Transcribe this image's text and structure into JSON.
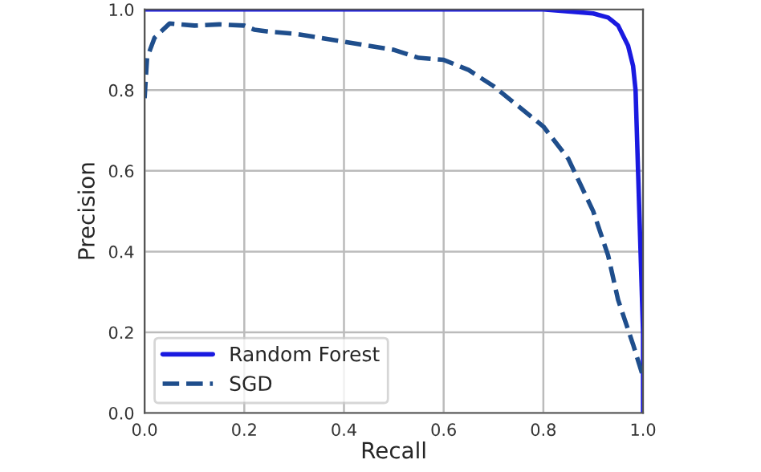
{
  "chart_data": {
    "type": "line",
    "xlabel": "Recall",
    "ylabel": "Precision",
    "xlim": [
      0,
      1
    ],
    "ylim": [
      0,
      1
    ],
    "xticks": [
      {
        "value": 0,
        "label": "0.0"
      },
      {
        "value": 0.2,
        "label": "0.2"
      },
      {
        "value": 0.4,
        "label": "0.4"
      },
      {
        "value": 0.6,
        "label": "0.6"
      },
      {
        "value": 0.8,
        "label": "0.8"
      },
      {
        "value": 1,
        "label": "1.0"
      }
    ],
    "yticks": [
      {
        "value": 0,
        "label": "0.0"
      },
      {
        "value": 0.2,
        "label": "0.2"
      },
      {
        "value": 0.4,
        "label": "0.4"
      },
      {
        "value": 0.6,
        "label": "0.6"
      },
      {
        "value": 0.8,
        "label": "0.8"
      },
      {
        "value": 1,
        "label": "1.0"
      }
    ],
    "grid": true,
    "legend": "bottom left",
    "series": [
      {
        "name": "Random Forest",
        "color": "#1a1ae0",
        "line_style": "solid",
        "x": [
          0,
          0.2,
          0.4,
          0.6,
          0.8,
          0.85,
          0.9,
          0.93,
          0.95,
          0.97,
          0.98,
          0.985,
          0.99,
          0.995,
          1.0,
          1.0
        ],
        "values": [
          1.0,
          1.0,
          1.0,
          1.0,
          1.0,
          0.995,
          0.99,
          0.98,
          0.96,
          0.91,
          0.86,
          0.8,
          0.6,
          0.4,
          0.2,
          0.0
        ]
      },
      {
        "name": "SGD",
        "color": "#1f4e8c",
        "line_style": "dashed",
        "x": [
          0,
          0.005,
          0.02,
          0.05,
          0.1,
          0.15,
          0.2,
          0.22,
          0.25,
          0.3,
          0.4,
          0.5,
          0.55,
          0.6,
          0.65,
          0.7,
          0.75,
          0.8,
          0.85,
          0.9,
          0.93,
          0.95,
          0.98,
          1.0
        ],
        "values": [
          0.78,
          0.88,
          0.93,
          0.965,
          0.96,
          0.963,
          0.96,
          0.95,
          0.945,
          0.94,
          0.92,
          0.9,
          0.88,
          0.875,
          0.85,
          0.81,
          0.76,
          0.71,
          0.63,
          0.5,
          0.39,
          0.28,
          0.17,
          0.09
        ]
      }
    ]
  }
}
